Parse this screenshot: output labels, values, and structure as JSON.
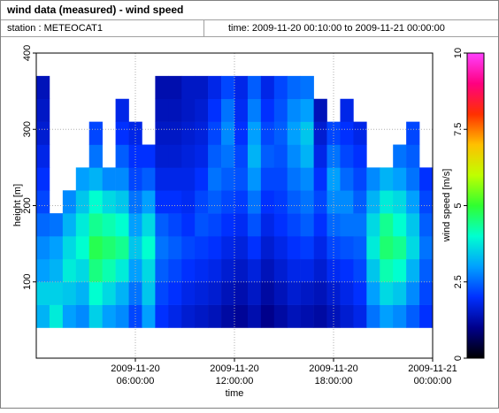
{
  "chart_data": {
    "type": "heatmap",
    "title": "wind data (measured) - wind speed",
    "station": "station : METEOCAT1",
    "time_range": "time: 2009-11-20 00:10:00 to 2009-11-21 00:00:00",
    "x_label": "time",
    "y_label": "height [m]",
    "colorbar_label": "wind speed [m/s]",
    "xlim": [
      0,
      24
    ],
    "ylim": [
      0,
      400
    ],
    "clim": [
      0,
      10
    ],
    "xticks": [
      {
        "value": 6,
        "label": [
          "2009-11-20",
          "06:00:00"
        ]
      },
      {
        "value": 12,
        "label": [
          "2009-11-20",
          "12:00:00"
        ]
      },
      {
        "value": 18,
        "label": [
          "2009-11-20",
          "18:00:00"
        ]
      },
      {
        "value": 24,
        "label": [
          "2009-11-21",
          "00:00:00"
        ]
      }
    ],
    "yticks": [
      100,
      200,
      300,
      400
    ],
    "cticks": [
      0,
      2.5,
      5,
      7.5,
      10
    ],
    "grid": true,
    "colormap": [
      "#000000",
      "#00008b",
      "#0030ff",
      "#00a0ff",
      "#00ffd0",
      "#30ff30",
      "#c0ff00",
      "#ffc000",
      "#ff3000",
      "#ff0080",
      "#ff40ff"
    ],
    "x": [
      0.4,
      1.2,
      2.0,
      2.8,
      3.6,
      4.4,
      5.2,
      6.0,
      6.8,
      7.6,
      8.4,
      9.2,
      10.0,
      10.8,
      11.6,
      12.4,
      13.2,
      14.0,
      14.8,
      15.6,
      16.4,
      17.2,
      18.0,
      18.8,
      19.6,
      20.4,
      21.2,
      22.0,
      22.8,
      23.6
    ],
    "y": [
      55,
      85,
      115,
      145,
      175,
      205,
      235,
      265,
      295,
      325,
      355
    ],
    "z": [
      [
        3.2,
        3.5,
        3.0,
        2.8,
        2.5,
        2.2,
        2.0,
        1.8,
        1.6,
        1.5,
        1.4
      ],
      [
        3.8,
        3.5,
        3.2,
        3.0,
        2.6,
        null,
        null,
        null,
        null,
        null,
        null
      ],
      [
        3.0,
        3.4,
        3.8,
        3.6,
        3.2,
        2.8,
        null,
        null,
        null,
        null,
        null
      ],
      [
        2.8,
        3.2,
        3.6,
        4.0,
        3.8,
        3.4,
        3.0,
        null,
        null,
        null,
        null
      ],
      [
        3.5,
        4.0,
        4.5,
        4.8,
        4.4,
        4.0,
        3.2,
        2.6,
        2.2,
        null,
        null
      ],
      [
        3.0,
        3.6,
        4.2,
        4.6,
        4.2,
        3.6,
        2.8,
        null,
        null,
        null,
        null
      ],
      [
        2.8,
        3.2,
        3.8,
        4.4,
        4.0,
        3.4,
        2.8,
        2.4,
        2.0,
        1.8,
        null
      ],
      [
        2.2,
        2.6,
        3.0,
        3.4,
        3.0,
        2.6,
        2.2,
        2.0,
        1.8,
        null,
        null
      ],
      [
        3.0,
        3.4,
        3.6,
        4.0,
        3.6,
        3.0,
        2.4,
        2.0,
        null,
        null,
        null
      ],
      [
        2.0,
        2.2,
        2.4,
        2.6,
        2.4,
        2.0,
        1.8,
        1.6,
        1.5,
        1.4,
        1.3
      ],
      [
        1.8,
        2.0,
        2.2,
        2.4,
        2.2,
        2.0,
        1.8,
        1.6,
        1.5,
        1.4,
        1.3
      ],
      [
        1.6,
        1.8,
        2.0,
        2.2,
        2.0,
        1.9,
        1.8,
        1.7,
        1.6,
        1.5,
        1.5
      ],
      [
        1.5,
        1.7,
        1.9,
        2.1,
        2.3,
        2.2,
        2.0,
        1.8,
        1.7,
        1.6,
        1.5
      ],
      [
        1.4,
        1.6,
        1.8,
        2.0,
        2.2,
        2.4,
        2.6,
        2.4,
        2.2,
        2.0,
        1.8
      ],
      [
        1.2,
        1.4,
        1.6,
        1.8,
        2.0,
        2.2,
        2.4,
        2.6,
        2.8,
        2.6,
        2.2
      ],
      [
        1.1,
        1.3,
        1.5,
        1.7,
        1.9,
        2.1,
        2.3,
        2.2,
        2.0,
        1.9,
        1.8
      ],
      [
        1.3,
        1.5,
        1.7,
        2.0,
        2.3,
        2.6,
        2.9,
        3.2,
        3.0,
        2.7,
        2.4
      ],
      [
        1.0,
        1.2,
        1.4,
        1.6,
        1.8,
        2.0,
        2.2,
        2.4,
        2.2,
        2.0,
        1.8
      ],
      [
        1.2,
        1.4,
        1.6,
        1.8,
        2.0,
        2.1,
        2.2,
        2.3,
        2.4,
        2.3,
        2.2
      ],
      [
        1.4,
        1.6,
        1.8,
        2.0,
        2.2,
        2.4,
        2.6,
        2.8,
        3.0,
        2.8,
        2.5
      ],
      [
        1.3,
        1.5,
        1.8,
        2.1,
        2.4,
        2.6,
        2.8,
        3.2,
        3.4,
        3.0,
        2.6
      ],
      [
        1.2,
        1.4,
        1.6,
        1.8,
        2.0,
        2.2,
        2.0,
        1.8,
        1.6,
        1.4,
        null
      ],
      [
        1.4,
        1.6,
        1.9,
        2.2,
        2.5,
        2.8,
        3.0,
        2.6,
        2.2,
        null,
        null
      ],
      [
        1.6,
        1.8,
        2.0,
        2.3,
        2.6,
        2.8,
        2.5,
        2.2,
        2.0,
        1.8,
        null
      ],
      [
        1.8,
        2.0,
        2.2,
        2.4,
        2.6,
        2.4,
        2.2,
        2.0,
        1.8,
        null,
        null
      ],
      [
        2.6,
        3.0,
        3.4,
        3.8,
        3.6,
        3.2,
        2.8,
        null,
        null,
        null,
        null
      ],
      [
        3.0,
        3.6,
        4.2,
        4.6,
        4.4,
        3.8,
        3.2,
        null,
        null,
        null,
        null
      ],
      [
        2.8,
        3.4,
        4.0,
        4.4,
        4.0,
        3.6,
        3.0,
        2.6,
        null,
        null,
        null
      ],
      [
        2.4,
        2.8,
        3.2,
        3.6,
        3.4,
        3.0,
        2.6,
        2.4,
        2.2,
        null,
        null
      ],
      [
        2.0,
        2.2,
        2.4,
        2.6,
        2.4,
        2.2,
        2.0,
        null,
        null,
        null,
        null
      ]
    ]
  }
}
